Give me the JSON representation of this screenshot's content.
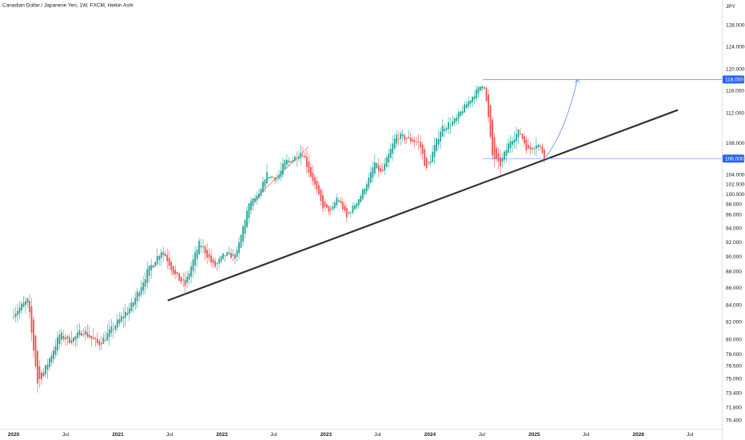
{
  "chart_data": {
    "type": "candlestick",
    "title": "Canadian Dollar / Japanese Yen, 1W, FXCM, Heikin Ashi",
    "currency": "JPY",
    "colors": {
      "up": "#26a69a",
      "down": "#ef5350",
      "trend": "#333333",
      "projection": "#5b8ee6",
      "tag": "#2962ff"
    },
    "y_ticks": [
      "128.000",
      "124.000",
      "120.000",
      "116.000",
      "112.000",
      "108.000",
      "106.000",
      "104.000",
      "102.000",
      "100.000",
      "98.000",
      "96.000",
      "94.000",
      "92.000",
      "90.000",
      "88.000",
      "86.000",
      "84.000",
      "82.000",
      "80.000",
      "78.000",
      "76.500",
      "75.000",
      "73.400",
      "71.800",
      "70.400"
    ],
    "x_ticks": [
      "2020",
      "Jul",
      "2021",
      "Jul",
      "2022",
      "Jul",
      "2023",
      "Jul",
      "2024",
      "Jul",
      "2025",
      "Jul",
      "2026",
      "Jul"
    ],
    "price_tags": [
      "118.000",
      "106.000"
    ],
    "anchors": [
      [
        "2020-01-01",
        83.0
      ],
      [
        "2020-02-20",
        84.5
      ],
      [
        "2020-03-25",
        74.5
      ],
      [
        "2020-04-20",
        76.0
      ],
      [
        "2020-06-10",
        80.5
      ],
      [
        "2020-07-20",
        79.8
      ],
      [
        "2020-09-01",
        81.0
      ],
      [
        "2020-10-25",
        79.3
      ],
      [
        "2020-12-20",
        81.5
      ],
      [
        "2021-02-20",
        84.0
      ],
      [
        "2021-04-15",
        88.0
      ],
      [
        "2021-06-05",
        91.0
      ],
      [
        "2021-07-20",
        87.5
      ],
      [
        "2021-08-25",
        86.3
      ],
      [
        "2021-10-15",
        92.0
      ],
      [
        "2021-12-05",
        88.5
      ],
      [
        "2022-01-10",
        90.3
      ],
      [
        "2022-02-20",
        90.0
      ],
      [
        "2022-04-10",
        98.5
      ],
      [
        "2022-05-10",
        99.5
      ],
      [
        "2022-06-05",
        104.0
      ],
      [
        "2022-07-10",
        103.0
      ],
      [
        "2022-08-10",
        105.5
      ],
      [
        "2022-09-10",
        106.0
      ],
      [
        "2022-10-10",
        107.0
      ],
      [
        "2022-11-15",
        103.0
      ],
      [
        "2022-12-20",
        97.5
      ],
      [
        "2023-01-20",
        96.5
      ],
      [
        "2023-02-10",
        99.5
      ],
      [
        "2023-03-15",
        95.5
      ],
      [
        "2023-05-01",
        99.5
      ],
      [
        "2023-06-20",
        105.5
      ],
      [
        "2023-07-15",
        104.0
      ],
      [
        "2023-09-05",
        109.0
      ],
      [
        "2023-10-20",
        108.5
      ],
      [
        "2023-11-25",
        108.0
      ],
      [
        "2023-12-20",
        104.5
      ],
      [
        "2024-02-10",
        110.0
      ],
      [
        "2024-04-01",
        111.0
      ],
      [
        "2024-05-15",
        114.0
      ],
      [
        "2024-07-08",
        117.5
      ],
      [
        "2024-08-05",
        106.5
      ],
      [
        "2024-09-01",
        105.0
      ],
      [
        "2024-10-10",
        108.5
      ],
      [
        "2024-11-10",
        109.5
      ],
      [
        "2024-12-10",
        107.0
      ],
      [
        "2025-01-10",
        108.0
      ],
      [
        "2025-02-05",
        106.5
      ]
    ],
    "trendline": [
      [
        "2021-06-25",
        84.5
      ],
      [
        "2026-05-20",
        112.5
      ]
    ],
    "inner_trendline": [
      [
        "2022-04-10",
        98.2
      ],
      [
        "2022-11-01",
        107.5
      ]
    ],
    "hlines": [
      {
        "value": 118.0,
        "from": "2024-07-05"
      },
      {
        "value": 106.0,
        "from": "2024-07-05"
      }
    ],
    "projection": [
      [
        "2025-02-10",
        106.2
      ],
      [
        "2025-04-20",
        109.5
      ],
      [
        "2025-06-01",
        118.0
      ]
    ]
  }
}
